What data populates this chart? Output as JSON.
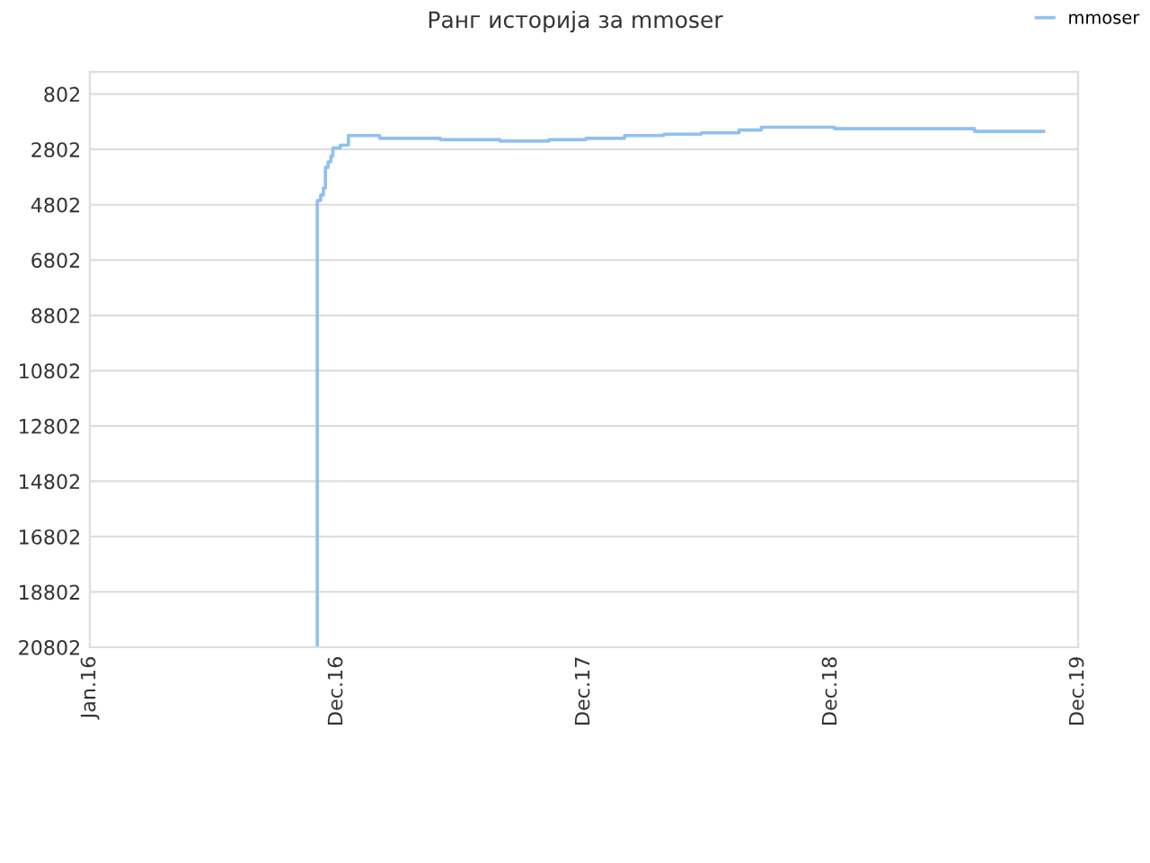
{
  "chart_data": {
    "type": "step",
    "title": "Ранг историја за mmoser",
    "x": [
      "2016-12-02",
      "2016-12-02",
      "2016-12-07",
      "2016-12-11",
      "2016-12-14",
      "2016-12-18",
      "2016-12-22",
      "2016-12-25",
      "2017-01-05",
      "2017-01-17",
      "2017-03-04",
      "2017-06-02",
      "2017-08-29",
      "2017-11-09",
      "2018-01-03",
      "2018-03-01",
      "2018-04-28",
      "2018-06-22",
      "2018-08-17",
      "2018-09-12",
      "2018-09-19",
      "2019-01-05",
      "2019-07-31",
      "2019-11-10"
    ],
    "series": [
      {
        "name": "mmoser",
        "color": "#90c0f0",
        "values": [
          20802,
          4650,
          4450,
          4200,
          3450,
          3250,
          3050,
          2750,
          2650,
          2300,
          2400,
          2450,
          2500,
          2450,
          2400,
          2300,
          2250,
          2200,
          2100,
          2100,
          2000,
          2050,
          2150,
          2150
        ]
      }
    ],
    "xlim": [
      "2016-01-01",
      "2019-12-31"
    ],
    "xticks": [
      {
        "value": "2016-01-01",
        "label": "Jan.16"
      },
      {
        "value": "2016-12-31",
        "label": "Dec.16"
      },
      {
        "value": "2017-12-31",
        "label": "Dec.17"
      },
      {
        "value": "2018-12-31",
        "label": "Dec.18"
      },
      {
        "value": "2019-12-31",
        "label": "Dec.19"
      }
    ],
    "ylim": [
      20802,
      0
    ],
    "yticks": [
      802,
      2802,
      4802,
      6802,
      8802,
      10802,
      12802,
      14802,
      16802,
      18802,
      20802
    ],
    "grid": "y",
    "legend": "top right",
    "marker": "none",
    "line_style": "solid"
  }
}
